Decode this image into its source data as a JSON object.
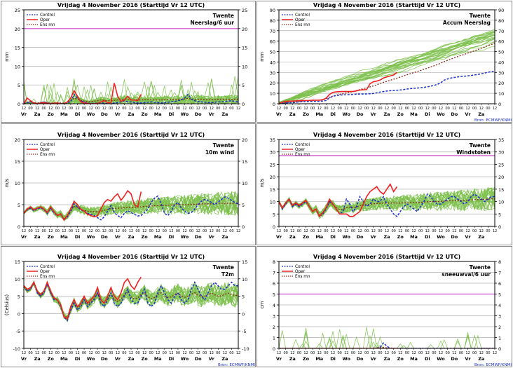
{
  "figure": {
    "background": "#ffffff",
    "panel_border": "#8a8a8a"
  },
  "styles": {
    "control_color": "#1a2ecc",
    "oper_color": "#ee2222",
    "ensmn_color": "#8b2a1a",
    "member_color": "#7bbf4a",
    "threshold_color": "#cc44cc",
    "source_color": "#1a2ecc"
  },
  "x_axis": {
    "hour_labels": [
      "12",
      "00",
      "12",
      "00",
      "12",
      "00",
      "12",
      "00",
      "12",
      "00",
      "12",
      "00",
      "12",
      "00",
      "12",
      "00",
      "12",
      "00",
      "12",
      "00",
      "12",
      "00",
      "12",
      "00",
      "12",
      "00",
      "12",
      "00",
      "12",
      "00",
      "12",
      "00",
      "12"
    ],
    "day_labels": [
      "Vr",
      "Za",
      "Zo",
      "Ma",
      "Di",
      "Wo",
      "Do",
      "Vr",
      "Za",
      "Zo",
      "Ma",
      "Di",
      "Wo",
      "Do",
      "Vr",
      "Za"
    ]
  },
  "chart_data": [
    {
      "type": "line",
      "title": "Vrijdag  4 November 2016     (Starttijd Vr 12 UTC)",
      "station": "Twente",
      "subtitle": "Neerslag/6 uur",
      "ylabel": "mm",
      "ylim": [
        0,
        25
      ],
      "yticks": [
        0,
        5,
        10,
        15,
        20,
        25
      ],
      "threshold": 20,
      "legend": [
        "Control",
        "Oper",
        "Ens mn"
      ],
      "source": "",
      "control": [
        0,
        0.3,
        0.5,
        0.2,
        0,
        0.3,
        0.5,
        0.2,
        0,
        0.1,
        0.2,
        0,
        0,
        0.3,
        0.5,
        2.5,
        1.5,
        0.8,
        0.4,
        0.2,
        0.1,
        0.1,
        0.2,
        0.3,
        0.1,
        0,
        0.1,
        0.2,
        0.3,
        0.5,
        0.8,
        0.5,
        0.5,
        0.3,
        0.2,
        0.2,
        0.3,
        0.4,
        0.5,
        0.4,
        0.3,
        0.2,
        0.3,
        0.4,
        0.5,
        0.6,
        0.8,
        1.0,
        1.5,
        2.5,
        1.2,
        0.8,
        0.6,
        0.5,
        0.4,
        0.3,
        0.3,
        0.4,
        0.5,
        0.5,
        0.6,
        0.7,
        0.8,
        0.6,
        0.5
      ],
      "oper": [
        0,
        1.5,
        0.8,
        0.2,
        0,
        0.2,
        0.3,
        0.1,
        0,
        0.1,
        0.2,
        0,
        0,
        0.5,
        1.5,
        3.5,
        2.0,
        0.5,
        0.2,
        0.1,
        0,
        0,
        0.1,
        0.5,
        0.8,
        0.3,
        0.2,
        5.5,
        2.0,
        0.6,
        1.0,
        2.0,
        1.0,
        1.0,
        0.8,
        2.5
      ],
      "ensmn": [
        0,
        0.4,
        0.5,
        0.3,
        0.2,
        0.3,
        0.4,
        0.3,
        0.2,
        0.2,
        0.3,
        0.2,
        0.2,
        0.4,
        0.8,
        1.5,
        1.2,
        0.9,
        0.7,
        0.6,
        0.6,
        0.7,
        0.8,
        1.0,
        0.9,
        0.8,
        0.8,
        0.9,
        1.0,
        1.1,
        1.2,
        1.1,
        1.0,
        1.0,
        1.0,
        1.0,
        1.1,
        1.1,
        1.1,
        1.0,
        1.0,
        1.0,
        1.1,
        1.1,
        1.1,
        1.1,
        1.2,
        1.2,
        1.3,
        1.4,
        1.3,
        1.2,
        1.2,
        1.2,
        1.1,
        1.1,
        1.1,
        1.1,
        1.2,
        1.2,
        1.2,
        1.2,
        1.2,
        1.2,
        1.2
      ]
    },
    {
      "type": "line",
      "title": "Vrijdag  4 November 2016     (Starttijd Vr 12 UTC)",
      "station": "Twente",
      "subtitle": "Accum Neerslag",
      "ylabel": "mm",
      "ylim": [
        0,
        90
      ],
      "yticks": [
        0,
        10,
        20,
        30,
        40,
        50,
        60,
        70,
        80,
        90
      ],
      "legend": [
        "Control",
        "Oper",
        "Ens mn"
      ],
      "source": "Bron: ECMWF/KNMI",
      "control": [
        0,
        0.3,
        0.8,
        1.0,
        1.0,
        1.3,
        1.8,
        2.0,
        2.0,
        2.1,
        2.3,
        2.3,
        2.3,
        2.6,
        3.1,
        5.6,
        7.1,
        7.9,
        8.3,
        8.5,
        8.6,
        8.7,
        8.9,
        9.2,
        9.3,
        9.3,
        9.4,
        9.6,
        9.9,
        10.4,
        11.2,
        11.7,
        12.2,
        12.5,
        12.7,
        12.9,
        13.2,
        13.6,
        14.1,
        14.5,
        14.8,
        15.0,
        15.3,
        15.7,
        16.2,
        16.8,
        17.6,
        18.6,
        20.1,
        22.6,
        23.8,
        24.6,
        25.2,
        25.7,
        26.1,
        26.4,
        26.7,
        27.1,
        27.6,
        28.1,
        28.7,
        29.4,
        30.2,
        30.8,
        31.3
      ],
      "oper": [
        0,
        1.5,
        2.3,
        2.5,
        2.5,
        2.7,
        3.0,
        3.1,
        3.1,
        3.2,
        3.4,
        3.4,
        3.4,
        3.9,
        5.4,
        8.9,
        10.9,
        11.4,
        11.6,
        11.7,
        11.7,
        11.7,
        11.8,
        12.3,
        13.1,
        13.4,
        13.6,
        19.1,
        21.1,
        21.7,
        22.7,
        24.7,
        25.7,
        26.7,
        27.5,
        30.0
      ],
      "ensmn": [
        0,
        0.4,
        0.9,
        1.2,
        1.4,
        1.7,
        2.1,
        2.4,
        2.6,
        2.8,
        3.1,
        3.3,
        3.5,
        3.9,
        4.7,
        6.2,
        7.4,
        8.3,
        9.0,
        9.6,
        10.2,
        10.9,
        11.7,
        12.7,
        13.6,
        14.4,
        15.2,
        16.1,
        17.1,
        18.2,
        19.4,
        20.5,
        21.5,
        22.5,
        23.5,
        24.5,
        25.6,
        26.7,
        27.8,
        28.8,
        29.8,
        30.8,
        31.9,
        33.0,
        34.1,
        35.2,
        36.4,
        37.6,
        38.9,
        40.3,
        41.6,
        42.8,
        44.0,
        45.2,
        46.3,
        47.4,
        48.5,
        49.6,
        50.8,
        52.0,
        53.2,
        54.4,
        55.6,
        56.8,
        58.0
      ]
    },
    {
      "type": "line",
      "title": "Vrijdag  4 November 2016     (Starttijd Vr 12 UTC)",
      "station": "Twente",
      "subtitle": "10m wind",
      "ylabel": "m/s",
      "ylim": [
        0,
        20
      ],
      "yticks": [
        0,
        5,
        10,
        15,
        20
      ],
      "legend": [
        "Control",
        "Oper",
        "Ens mn"
      ],
      "source": "",
      "control": [
        3,
        3.8,
        4.2,
        3.6,
        4.0,
        4.3,
        3.9,
        3.0,
        4.2,
        3.1,
        2.5,
        2.8,
        1.5,
        2.2,
        3.5,
        5.2,
        4.5,
        3.8,
        3.5,
        3.0,
        2.8,
        2.5,
        2.0,
        1.5,
        2.2,
        3.5,
        4.8,
        3.2,
        2.5,
        2.0,
        3.0,
        3.6,
        3.2,
        2.8,
        2.4,
        2.5,
        3.2,
        4.0,
        5.5,
        6.5,
        7.0,
        5.2,
        3.0,
        2.5,
        3.5,
        5.0,
        5.5,
        4.2,
        3.5,
        3.0,
        3.2,
        4.0,
        5.0,
        5.8,
        6.2,
        6.0,
        5.5,
        5.0,
        5.6,
        6.2,
        6.8,
        6.5,
        6.0,
        5.5,
        5.2
      ],
      "oper": [
        3,
        4.0,
        4.5,
        3.8,
        4.2,
        4.5,
        4.0,
        3.2,
        4.5,
        3.4,
        2.5,
        2.9,
        1.5,
        2.5,
        4.0,
        5.8,
        5.0,
        4.0,
        3.5,
        2.8,
        2.5,
        2.2,
        2.5,
        4.0,
        5.5,
        6.2,
        5.8,
        6.8,
        7.5,
        6.0,
        7.0,
        8.2,
        7.5,
        5.0,
        4.5,
        8.0
      ],
      "ensmn": [
        3.1,
        3.9,
        4.3,
        3.7,
        4.1,
        4.4,
        4.0,
        3.2,
        4.3,
        3.3,
        2.6,
        2.9,
        1.8,
        2.5,
        3.6,
        4.6,
        4.3,
        3.9,
        3.7,
        3.5,
        3.4,
        3.4,
        3.4,
        3.5,
        3.7,
        3.9,
        4.1,
        4.1,
        4.2,
        4.2,
        4.3,
        4.4,
        4.4,
        4.4,
        4.5,
        4.5,
        4.6,
        4.7,
        4.7,
        4.8,
        4.8,
        4.8,
        4.8,
        4.9,
        4.9,
        5.0,
        5.0,
        5.0,
        5.0,
        5.0,
        5.1,
        5.1,
        5.1,
        5.2,
        5.2,
        5.2,
        5.2,
        5.2,
        5.3,
        5.3,
        5.3,
        5.3,
        5.3,
        5.3,
        5.3
      ]
    },
    {
      "type": "line",
      "title": "Vrijdag  4 November 2016     (Starttijd Vr 12 UTC)",
      "station": "Twente",
      "subtitle": "Windstoten",
      "ylabel": "m/s",
      "ylim": [
        0,
        35
      ],
      "yticks": [
        0,
        5,
        10,
        15,
        20,
        25,
        30,
        35
      ],
      "threshold": 28.5,
      "legend": [
        "Control",
        "Oper",
        "Ens mn"
      ],
      "source": "",
      "control": [
        10,
        7,
        9,
        11,
        8,
        9,
        8,
        9,
        10,
        8,
        6,
        7,
        4,
        5,
        7,
        10,
        9,
        7,
        5,
        6,
        11,
        9,
        6,
        8,
        12,
        10,
        8,
        9,
        11,
        10,
        10,
        12,
        9,
        7,
        5,
        4,
        6,
        8,
        9,
        8,
        7,
        6,
        8,
        10,
        13,
        12,
        10,
        9,
        9,
        10,
        11,
        12,
        12,
        11,
        10,
        9,
        10,
        12,
        13,
        12,
        11,
        10,
        11,
        12,
        12
      ],
      "oper": [
        10,
        7.5,
        9.5,
        11,
        8.5,
        9.5,
        8.5,
        9.5,
        10.5,
        8,
        6,
        7,
        4,
        5.5,
        7.5,
        11,
        9,
        7,
        5,
        5,
        5,
        4,
        4,
        5,
        6,
        9,
        12,
        14,
        15,
        16,
        14,
        13,
        15,
        17,
        14,
        16
      ],
      "ensmn": [
        10,
        7.3,
        9.2,
        10.8,
        8.3,
        9.2,
        8.2,
        9.1,
        10.2,
        8.1,
        6.2,
        7.1,
        4.5,
        5.5,
        7.3,
        9.5,
        8.8,
        7.6,
        6.8,
        6.8,
        7.5,
        7.8,
        7.5,
        7.8,
        8.3,
        8.5,
        8.7,
        8.9,
        9.1,
        9.2,
        9.3,
        9.4,
        9.4,
        9.4,
        9.4,
        9.4,
        9.4,
        9.5,
        9.5,
        9.6,
        9.6,
        9.6,
        9.7,
        9.8,
        9.9,
        10.0,
        10.0,
        10.0,
        10.1,
        10.2,
        10.3,
        10.4,
        10.4,
        10.5,
        10.5,
        10.5,
        10.6,
        10.7,
        10.8,
        10.8,
        10.9,
        10.9,
        11.0,
        11.1,
        11.1
      ]
    },
    {
      "type": "line",
      "title": "Vrijdag  4 November 2016     (Starttijd Vr 12 UTC)",
      "station": "Twente",
      "subtitle": "T2m",
      "ylabel": "(Celsius)",
      "ylim": [
        -10,
        15
      ],
      "yticks": [
        -10,
        -5,
        0,
        5,
        10,
        15
      ],
      "legend": [
        "Control",
        "Oper",
        "Ens mn"
      ],
      "source": "Bron: ECMWF/KNMI",
      "control": [
        8,
        6.5,
        7,
        9,
        6,
        5,
        6,
        8.5,
        6,
        4,
        4,
        2,
        -1,
        -2,
        1,
        3,
        1,
        2,
        4,
        2,
        3,
        4,
        6,
        3,
        2,
        4,
        6,
        3,
        2,
        3,
        5,
        7,
        4,
        3,
        3,
        5,
        7,
        3,
        2,
        3,
        6,
        8,
        6,
        4,
        3,
        5,
        6,
        4,
        3,
        4,
        7,
        9,
        7,
        5,
        4,
        6,
        8,
        9,
        8,
        7,
        7,
        8,
        9,
        8,
        8
      ],
      "oper": [
        8,
        7,
        7.5,
        9,
        6.5,
        5.5,
        6.5,
        9,
        6.5,
        4.5,
        4,
        2.5,
        -1,
        -1.5,
        2,
        4,
        2,
        3,
        5,
        3,
        4,
        5,
        7.5,
        4,
        3,
        5,
        7.5,
        5,
        4,
        6,
        9,
        10,
        8,
        7,
        9,
        10.5
      ],
      "ensmn": [
        7.8,
        6.5,
        7.1,
        8.8,
        6.2,
        5.1,
        6.1,
        8.6,
        6.1,
        4.2,
        3.9,
        2.3,
        -0.5,
        -1.2,
        1.3,
        3.3,
        1.6,
        2.5,
        4.1,
        2.7,
        3.4,
        4.3,
        5.9,
        3.7,
        3.2,
        4.3,
        5.9,
        4.0,
        3.4,
        4.2,
        5.5,
        6.0,
        4.8,
        4.2,
        4.5,
        5.5,
        6.0,
        4.8,
        4.3,
        4.6,
        5.5,
        6.0,
        5.1,
        4.6,
        4.8,
        5.5,
        5.9,
        5.1,
        4.7,
        4.9,
        5.6,
        6.0,
        5.3,
        4.9,
        5.0,
        5.6,
        5.9,
        5.4,
        5.0,
        5.1,
        5.6,
        5.9,
        5.5,
        5.2,
        5.3
      ]
    },
    {
      "type": "line",
      "title": "Vrijdag  4 November 2016     (Starttijd Vr 12 UTC)",
      "station": "Twente",
      "subtitle": "sneeuwval/6 uur",
      "ylabel": "cm",
      "ylim": [
        0,
        8
      ],
      "yticks": [
        0,
        1,
        2,
        3,
        4,
        5,
        6,
        7,
        8
      ],
      "threshold": 5,
      "legend": [
        "Control",
        "Oper",
        "Ens mn"
      ],
      "source": "Bron: ECMWF/KNMI",
      "control": [
        0,
        0,
        0,
        0,
        0,
        0,
        0,
        0,
        0,
        0,
        0,
        0,
        0,
        0,
        0,
        0,
        0,
        0,
        0,
        0,
        0,
        0,
        0,
        0,
        0,
        0,
        0,
        0,
        0,
        0,
        0.1,
        0.5,
        0.2,
        0,
        0,
        0,
        0,
        0,
        0,
        0,
        0,
        0,
        0,
        0,
        0,
        0,
        0,
        0,
        0,
        0,
        0,
        0,
        0,
        0,
        0,
        0,
        0,
        0,
        0,
        0,
        0,
        0,
        0,
        0,
        0
      ],
      "oper": [
        0,
        0,
        0,
        0,
        0,
        0,
        0,
        0,
        0,
        0,
        0,
        0,
        0,
        0,
        0,
        0,
        0,
        0,
        0,
        0,
        0,
        0,
        0,
        0,
        0,
        0,
        0,
        0,
        0,
        0,
        0,
        0,
        0,
        0,
        0,
        0
      ],
      "ensmn": [
        0,
        0,
        0,
        0,
        0,
        0,
        0,
        0,
        0,
        0,
        0,
        0,
        0,
        0,
        0,
        0,
        0,
        0,
        0,
        0,
        0,
        0,
        0,
        0,
        0,
        0,
        0,
        0,
        0.02,
        0.05,
        0.08,
        0.08,
        0.05,
        0.03,
        0.02,
        0.02,
        0.01,
        0.01,
        0.02,
        0.02,
        0.01,
        0.01,
        0.01,
        0.01,
        0.01,
        0.01,
        0.01,
        0.01,
        0.01,
        0.01,
        0.01,
        0.01,
        0.02,
        0.02,
        0.01,
        0.01,
        0.01,
        0.01,
        0.01,
        0.01,
        0.02,
        0.02,
        0.02,
        0.02,
        0.02
      ]
    }
  ]
}
